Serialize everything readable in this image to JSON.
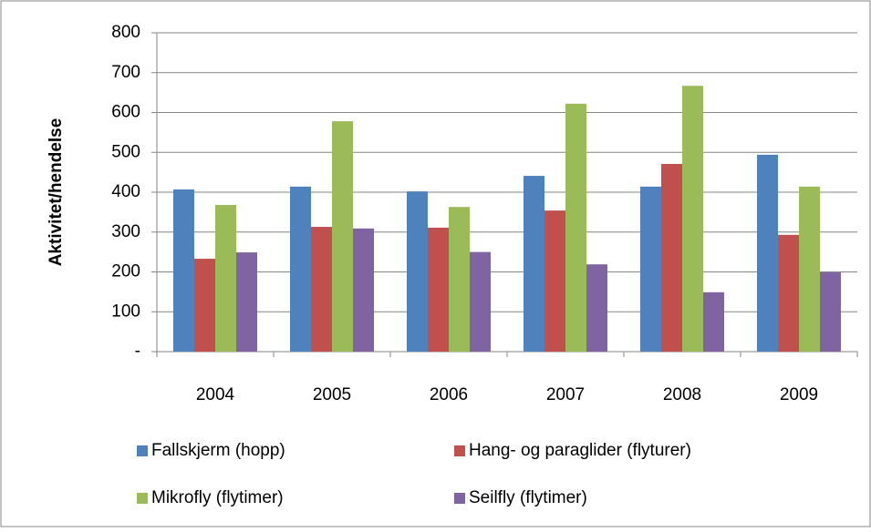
{
  "chart_data": {
    "type": "bar",
    "y_label": "Aktivitet/hendelse",
    "categories": [
      "2004",
      "2005",
      "2006",
      "2007",
      "2008",
      "2009"
    ],
    "series": [
      {
        "name": "Fallskjerm (hopp)",
        "color": "#4f81bd",
        "values": [
          407,
          414,
          402,
          441,
          414,
          494
        ]
      },
      {
        "name": "Hang- og paraglider (flyturer)",
        "color": "#c0504d",
        "values": [
          233,
          313,
          311,
          354,
          471,
          293
        ]
      },
      {
        "name": "Mikrofly (flytimer)",
        "color": "#9bbb59",
        "values": [
          368,
          578,
          363,
          622,
          667,
          414
        ]
      },
      {
        "name": "Seilfly (flytimer)",
        "color": "#8064a2",
        "values": [
          249,
          309,
          250,
          219,
          149,
          199
        ]
      }
    ],
    "ylim": [
      0,
      800
    ],
    "yticks": [
      {
        "value": 0,
        "label": "-"
      },
      100,
      200,
      300,
      400,
      500,
      600,
      700,
      800
    ],
    "grid": true,
    "legend": "bottom"
  }
}
